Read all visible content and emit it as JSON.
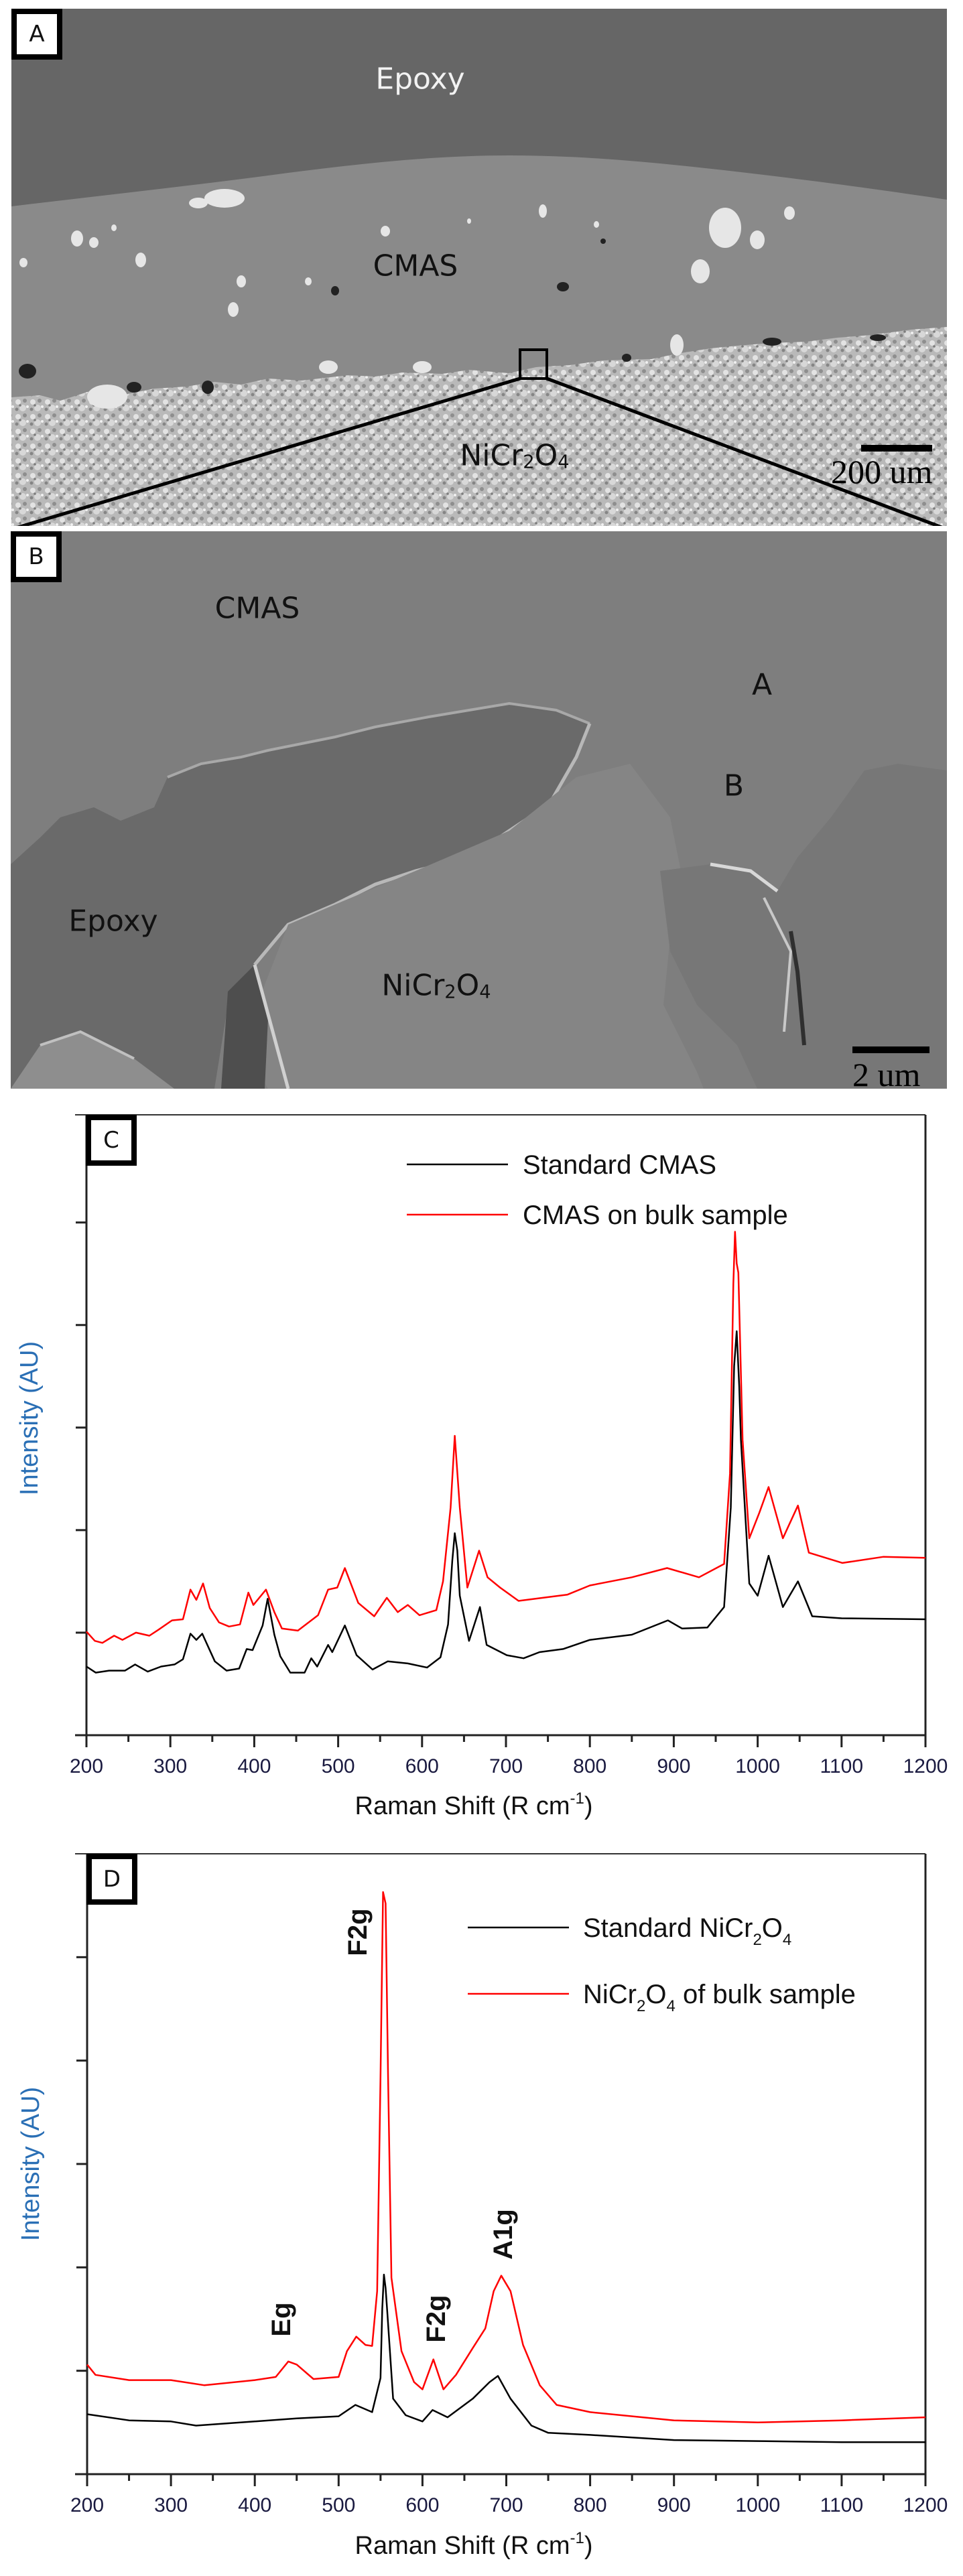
{
  "figure": {
    "panel_a": {
      "label": "A",
      "regions": {
        "epoxy": "Epoxy",
        "cmas": "CMAS",
        "substrate_main": "NiCr",
        "substrate_sub1": "2",
        "substrate_mid": "O",
        "substrate_sub2": "4"
      },
      "scale_bar": "200 um"
    },
    "panel_b": {
      "label": "B",
      "regions": {
        "cmas": "CMAS",
        "epoxy": "Epoxy",
        "substrate_main": "NiCr",
        "substrate_sub1": "2",
        "substrate_mid": "O",
        "substrate_sub2": "4"
      },
      "points": {
        "a": "A",
        "b": "B"
      },
      "scale_bar": "2 um"
    }
  },
  "colors": {
    "series_standard": "#000000",
    "series_bulk": "#ff0000",
    "ylabel": "#1f4e9a",
    "ylabel_fill": "#2a6fb5",
    "xlabel": "#111111"
  },
  "chart_data": [
    {
      "panel": "C",
      "type": "line",
      "title": "",
      "xlabel": "Raman Shift (R cm-1)",
      "xlabel_main": "Raman Shift (R cm",
      "xlabel_sup": "-1",
      "xlabel_end": ")",
      "ylabel": "Intensity (AU)",
      "xlim": [
        200,
        1200
      ],
      "ylim": [
        0,
        6.05
      ],
      "xticks": [
        200,
        300,
        400,
        500,
        600,
        700,
        800,
        900,
        1000,
        1100,
        1200
      ],
      "yticks_unlabeled": [
        1,
        2,
        3,
        4,
        5
      ],
      "grid": false,
      "legend_position": "top-right",
      "legend": [
        "Standard CMAS",
        "CMAS on bulk sample"
      ],
      "series": [
        {
          "name": "Standard CMAS",
          "color": "#000000",
          "x": [
            200,
            211,
            227,
            246,
            258,
            273,
            289,
            305,
            315,
            324,
            331,
            338,
            353,
            367,
            382,
            391,
            398,
            410,
            416,
            424,
            431,
            443,
            460,
            468,
            475,
            488,
            493,
            508,
            522,
            541,
            559,
            583,
            606,
            622,
            631,
            636,
            639,
            642,
            645,
            656,
            669,
            677,
            701,
            721,
            740,
            768,
            800,
            850,
            893,
            910,
            940,
            960,
            968,
            972,
            975,
            978,
            980,
            990,
            1000,
            1013,
            1030,
            1048,
            1065,
            1100,
            1200
          ],
          "y": [
            0.67,
            0.61,
            0.63,
            0.63,
            0.69,
            0.62,
            0.67,
            0.69,
            0.74,
            0.99,
            0.93,
            0.99,
            0.72,
            0.63,
            0.65,
            0.84,
            0.83,
            1.07,
            1.33,
            0.98,
            0.77,
            0.61,
            0.61,
            0.75,
            0.67,
            0.88,
            0.81,
            1.07,
            0.78,
            0.64,
            0.72,
            0.7,
            0.66,
            0.76,
            1.08,
            1.7,
            1.97,
            1.8,
            1.36,
            0.92,
            1.25,
            0.88,
            0.78,
            0.75,
            0.81,
            0.84,
            0.93,
            0.98,
            1.12,
            1.04,
            1.05,
            1.25,
            2.22,
            3.6,
            3.94,
            3.4,
            2.88,
            1.48,
            1.36,
            1.75,
            1.25,
            1.5,
            1.16,
            1.14,
            1.13
          ]
        },
        {
          "name": "CMAS on bulk sample",
          "color": "#ff0000",
          "x": [
            200,
            210,
            219,
            233,
            243,
            259,
            275,
            286,
            302,
            315,
            324,
            331,
            339,
            347,
            358,
            370,
            383,
            393,
            399,
            414,
            424,
            433,
            452,
            476,
            488,
            499,
            508,
            524,
            543,
            558,
            571,
            583,
            597,
            617,
            625,
            634,
            639,
            645,
            654,
            668,
            678,
            693,
            715,
            773,
            800,
            850,
            892,
            930,
            960,
            967,
            971,
            973,
            975,
            977,
            982,
            990,
            1002,
            1013,
            1030,
            1048,
            1061,
            1101,
            1150,
            1200
          ],
          "y": [
            1.01,
            0.92,
            0.9,
            0.97,
            0.93,
            1.0,
            0.97,
            1.03,
            1.12,
            1.13,
            1.42,
            1.32,
            1.48,
            1.24,
            1.1,
            1.06,
            1.08,
            1.39,
            1.27,
            1.42,
            1.2,
            1.04,
            1.02,
            1.17,
            1.42,
            1.44,
            1.63,
            1.29,
            1.16,
            1.34,
            1.2,
            1.27,
            1.17,
            1.22,
            1.5,
            2.22,
            2.92,
            2.22,
            1.44,
            1.8,
            1.54,
            1.44,
            1.31,
            1.37,
            1.46,
            1.54,
            1.63,
            1.54,
            1.67,
            2.55,
            4.4,
            4.91,
            4.6,
            4.51,
            2.88,
            1.92,
            2.17,
            2.42,
            1.92,
            2.24,
            1.78,
            1.68,
            1.74,
            1.73
          ]
        }
      ]
    },
    {
      "panel": "D",
      "type": "line",
      "title": "",
      "xlabel": "Raman Shift (R cm-1)",
      "xlabel_main": "Raman Shift (R cm",
      "xlabel_sup": "-1",
      "xlabel_end": ")",
      "ylabel": "Intensity (AU)",
      "xlim": [
        200,
        1200
      ],
      "ylim": [
        0,
        6.0
      ],
      "xticks": [
        200,
        300,
        400,
        500,
        600,
        700,
        800,
        900,
        1000,
        1100,
        1200
      ],
      "yticks_unlabeled": [
        1,
        2,
        3,
        4,
        5
      ],
      "grid": false,
      "legend_position": "top-right",
      "legend": [
        {
          "main": "Standard NiCr",
          "sub1": "2",
          "mid": "O",
          "sub2": "4",
          "tail": ""
        },
        {
          "main": "NiCr",
          "sub1": "2",
          "mid": "O",
          "sub2": "4",
          "tail": " of bulk sample"
        }
      ],
      "annotations": [
        {
          "text": "Eg",
          "x": 440
        },
        {
          "text": "F2g",
          "x": 553
        },
        {
          "text": "F2g",
          "x": 613
        },
        {
          "text": "A1g",
          "x": 694
        }
      ],
      "series": [
        {
          "name": "Standard NiCr2O4",
          "color": "#000000",
          "x": [
            200,
            250,
            300,
            330,
            400,
            450,
            500,
            520,
            540,
            550,
            552,
            554,
            556,
            558,
            565,
            580,
            600,
            612,
            630,
            660,
            680,
            690,
            705,
            730,
            750,
            800,
            900,
            1000,
            1100,
            1200
          ],
          "y": [
            0.58,
            0.52,
            0.51,
            0.47,
            0.51,
            0.54,
            0.56,
            0.67,
            0.6,
            0.93,
            1.6,
            1.93,
            1.8,
            1.57,
            0.73,
            0.57,
            0.51,
            0.62,
            0.55,
            0.73,
            0.89,
            0.95,
            0.73,
            0.47,
            0.4,
            0.38,
            0.33,
            0.32,
            0.31,
            0.31
          ]
        },
        {
          "name": "NiCr2O4 of bulk sample",
          "color": "#ff0000",
          "x": [
            200,
            210,
            250,
            300,
            340,
            400,
            425,
            440,
            450,
            470,
            500,
            510,
            521,
            532,
            540,
            546,
            550,
            553,
            556,
            559,
            563,
            575,
            590,
            600,
            613,
            625,
            640,
            660,
            675,
            685,
            694,
            705,
            720,
            740,
            760,
            800,
            900,
            1000,
            1100,
            1200
          ],
          "y": [
            1.06,
            0.96,
            0.91,
            0.91,
            0.86,
            0.91,
            0.94,
            1.09,
            1.06,
            0.92,
            0.94,
            1.19,
            1.33,
            1.25,
            1.24,
            1.77,
            3.84,
            5.63,
            5.52,
            3.84,
            1.9,
            1.19,
            0.89,
            0.82,
            1.11,
            0.82,
            0.96,
            1.22,
            1.41,
            1.77,
            1.92,
            1.77,
            1.25,
            0.86,
            0.67,
            0.6,
            0.52,
            0.5,
            0.52,
            0.55
          ]
        }
      ]
    }
  ],
  "panel_labels": {
    "c": "C",
    "d": "D"
  }
}
